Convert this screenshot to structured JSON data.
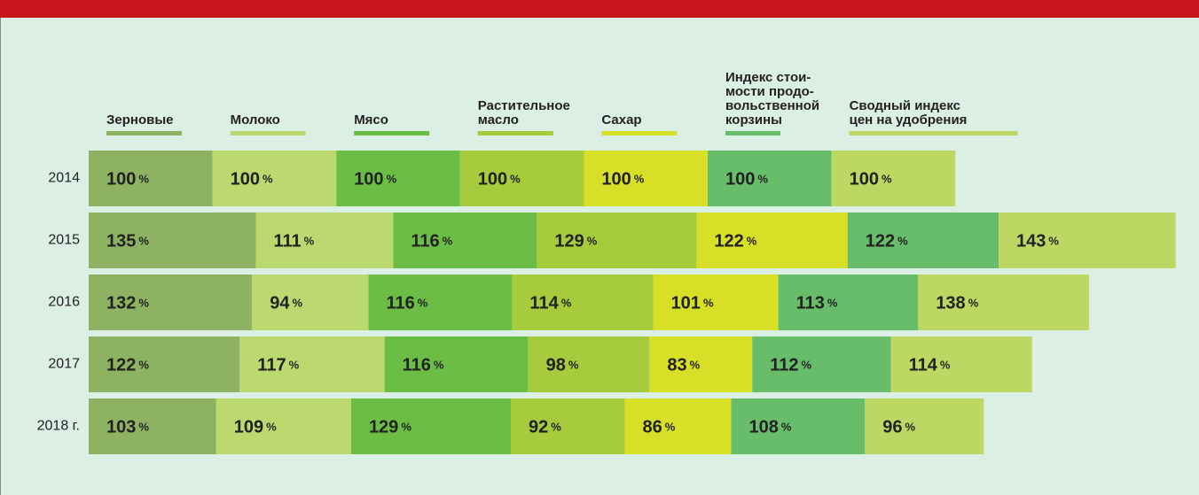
{
  "chart_data": {
    "type": "bar",
    "orientation": "horizontal",
    "stacked": true,
    "categories": [
      "2014",
      "2015",
      "2016",
      "2017",
      "2018 г."
    ],
    "series": [
      {
        "name": "Зерновые",
        "color": "#8db262",
        "values": [
          100,
          135,
          132,
          122,
          103
        ],
        "value_labels": [
          "100%",
          "135%",
          "132%",
          "122%",
          "103%"
        ]
      },
      {
        "name": "Молоко",
        "color": "#bcd970",
        "values": [
          100,
          111,
          94,
          117,
          109
        ],
        "value_labels": [
          "100%",
          "111%",
          "94%",
          "117%",
          "109%"
        ]
      },
      {
        "name": "Мясо",
        "color": "#6cbd45",
        "values": [
          100,
          116,
          116,
          116,
          129
        ],
        "value_labels": [
          "100%",
          "116%",
          "116%",
          "116%",
          "129%"
        ]
      },
      {
        "name": "Растительное\nмасло",
        "color": "#a6cb3c",
        "values": [
          100,
          129,
          114,
          98,
          92
        ],
        "value_labels": [
          "100%",
          "129%",
          "114%",
          "98%",
          "92%"
        ]
      },
      {
        "name": "Сахар",
        "color": "#d7df26",
        "values": [
          100,
          122,
          101,
          83,
          86
        ],
        "value_labels": [
          "100%",
          "122%",
          "101%",
          "83%",
          "86%"
        ]
      },
      {
        "name": "Индекс стои-\nмости продо-\nвольственной\nкорзины",
        "color": "#68bd6b",
        "values": [
          100,
          122,
          113,
          112,
          108
        ],
        "value_labels": [
          "100%",
          "122%",
          "113%",
          "112%",
          "108%"
        ]
      },
      {
        "name": "Сводный индекс\nцен на удобрения",
        "color": "#bcd862",
        "values": [
          100,
          143,
          138,
          114,
          96
        ],
        "value_labels": [
          "100%",
          "143%",
          "138%",
          "114%",
          "96%"
        ]
      }
    ]
  }
}
